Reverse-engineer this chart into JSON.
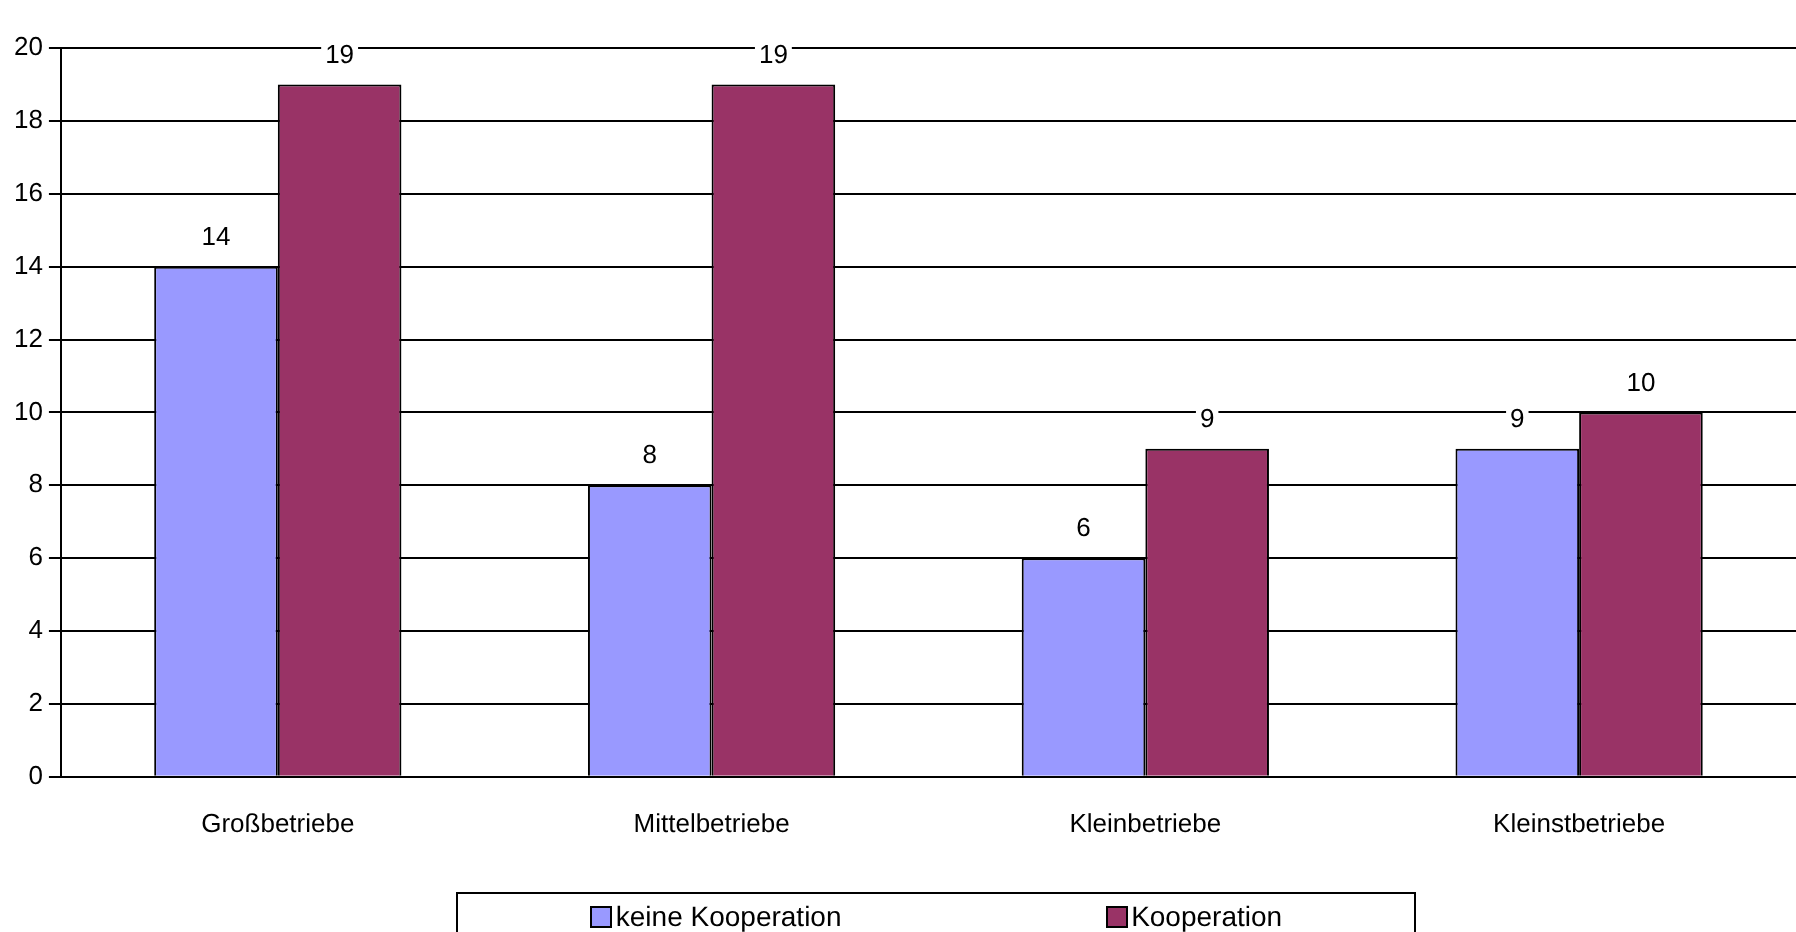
{
  "chart_data": {
    "type": "bar",
    "categories": [
      "Großbetriebe",
      "Mittelbetriebe",
      "Kleinbetriebe",
      "Kleinstbetriebe"
    ],
    "series": [
      {
        "name": "keine Kooperation",
        "color": "#9999ff",
        "values": [
          14,
          8,
          6,
          9
        ]
      },
      {
        "name": "Kooperation",
        "color": "#993366",
        "values": [
          19,
          19,
          9,
          10
        ]
      }
    ],
    "ylim": [
      0,
      20
    ],
    "yticks": [
      0,
      2,
      4,
      6,
      8,
      10,
      12,
      14,
      16,
      18,
      20
    ],
    "grid": "y",
    "legend": "bottom",
    "data_labels": true
  }
}
